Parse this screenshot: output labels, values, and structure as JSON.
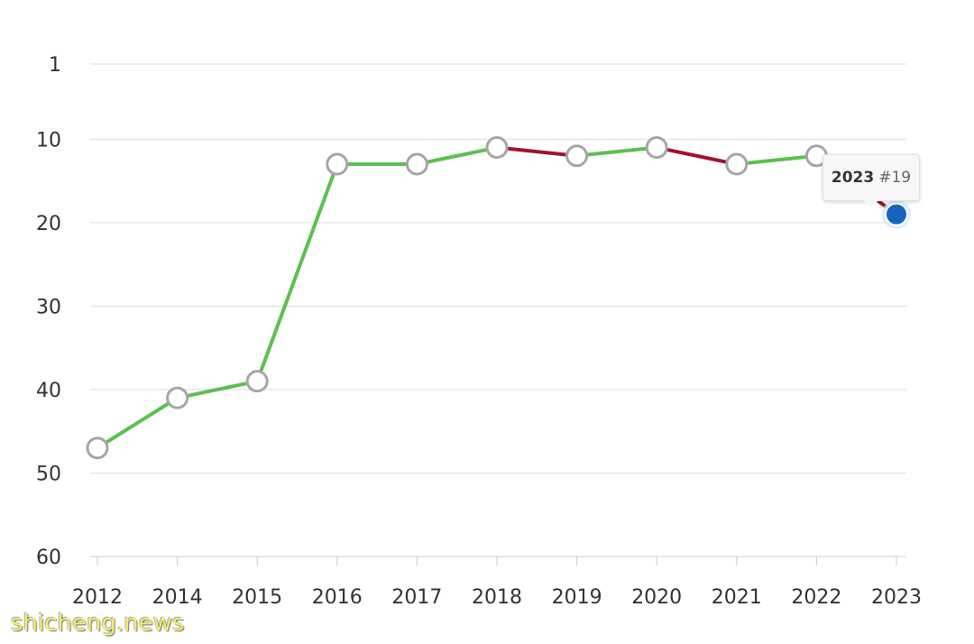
{
  "chart_data": {
    "type": "line",
    "title": "",
    "xlabel": "",
    "ylabel": "",
    "y_axis_inverted": true,
    "ylim": [
      1,
      60
    ],
    "y_ticks": [
      1,
      10,
      20,
      30,
      40,
      50,
      60
    ],
    "grid": true,
    "categories": [
      "2012",
      "2014",
      "2015",
      "2016",
      "2017",
      "2018",
      "2019",
      "2020",
      "2021",
      "2022",
      "2023"
    ],
    "series": [
      {
        "values": [
          47,
          41,
          39,
          13,
          13,
          11,
          12,
          11,
          13,
          12,
          19
        ]
      }
    ],
    "colors": {
      "improved": "#5cc04f",
      "declined": "#a3132f",
      "marker_fill": "#ffffff",
      "marker_stroke": "#a6a6a6",
      "highlight": "#1565c0",
      "grid": "#dddddd"
    },
    "tooltip": {
      "year": "2023",
      "rank": "#19"
    }
  },
  "watermark": "shicheng.news"
}
